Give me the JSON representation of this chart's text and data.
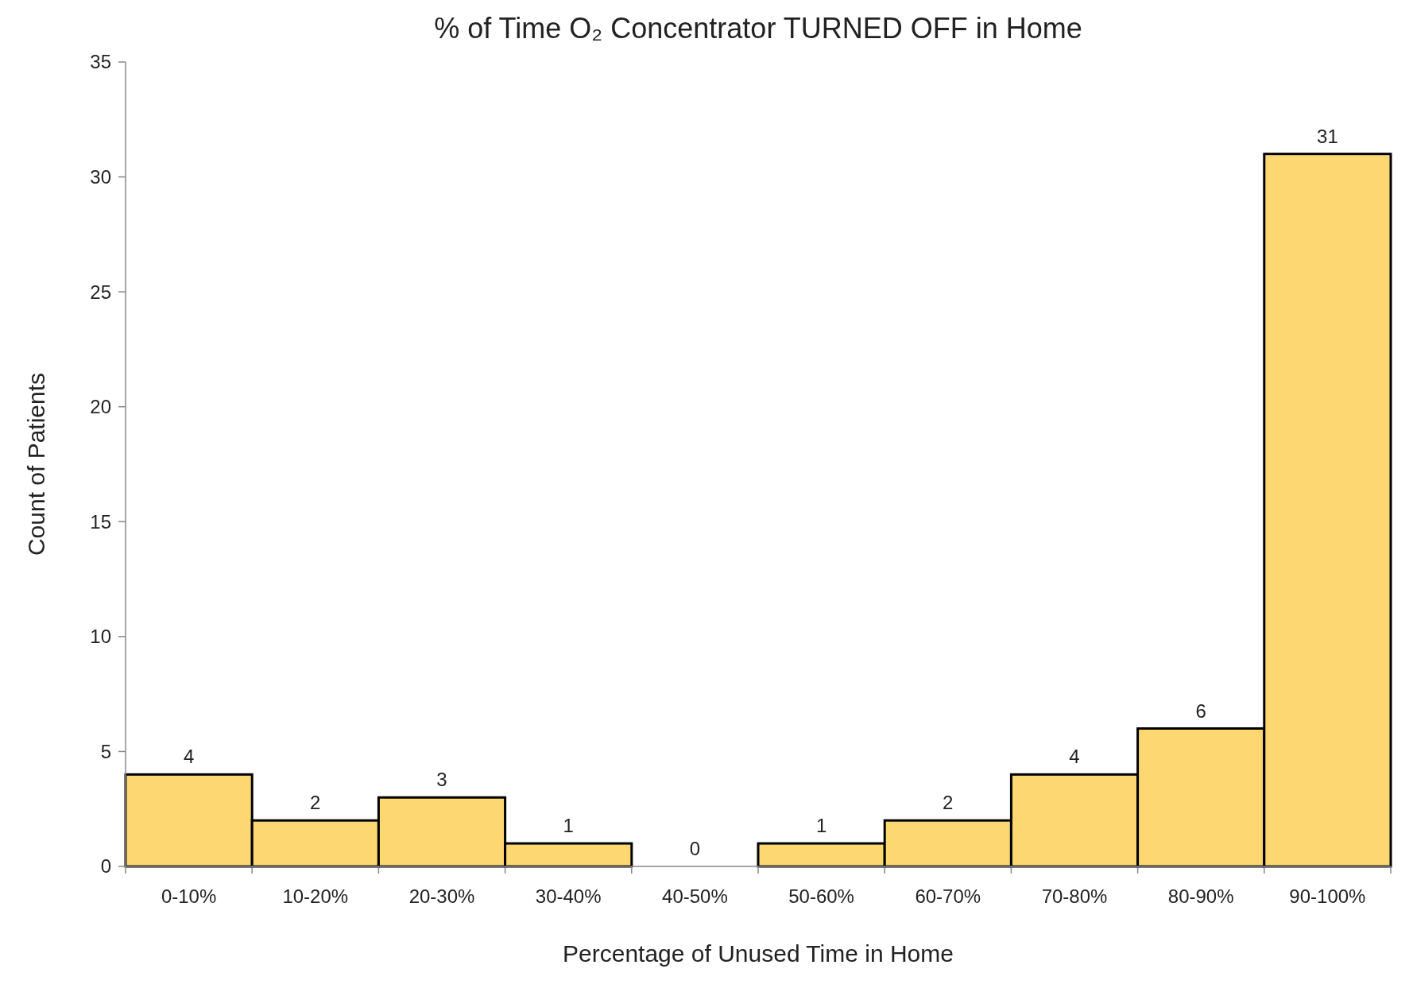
{
  "chart_data": {
    "type": "bar",
    "title": "% of Time O₂ Concentrator TURNED OFF in Home",
    "xlabel": "Percentage of Unused Time in Home",
    "ylabel": "Count of Patients",
    "categories": [
      "0-10%",
      "10-20%",
      "20-30%",
      "30-40%",
      "40-50%",
      "50-60%",
      "60-70%",
      "70-80%",
      "80-90%",
      "90-100%"
    ],
    "values": [
      4,
      2,
      3,
      1,
      0,
      1,
      2,
      4,
      6,
      31
    ],
    "color": "#fdd872",
    "ylim": [
      0,
      35
    ],
    "yticks": [
      0,
      5,
      10,
      15,
      20,
      25,
      30,
      35
    ],
    "grid": false,
    "data_labels": true
  }
}
